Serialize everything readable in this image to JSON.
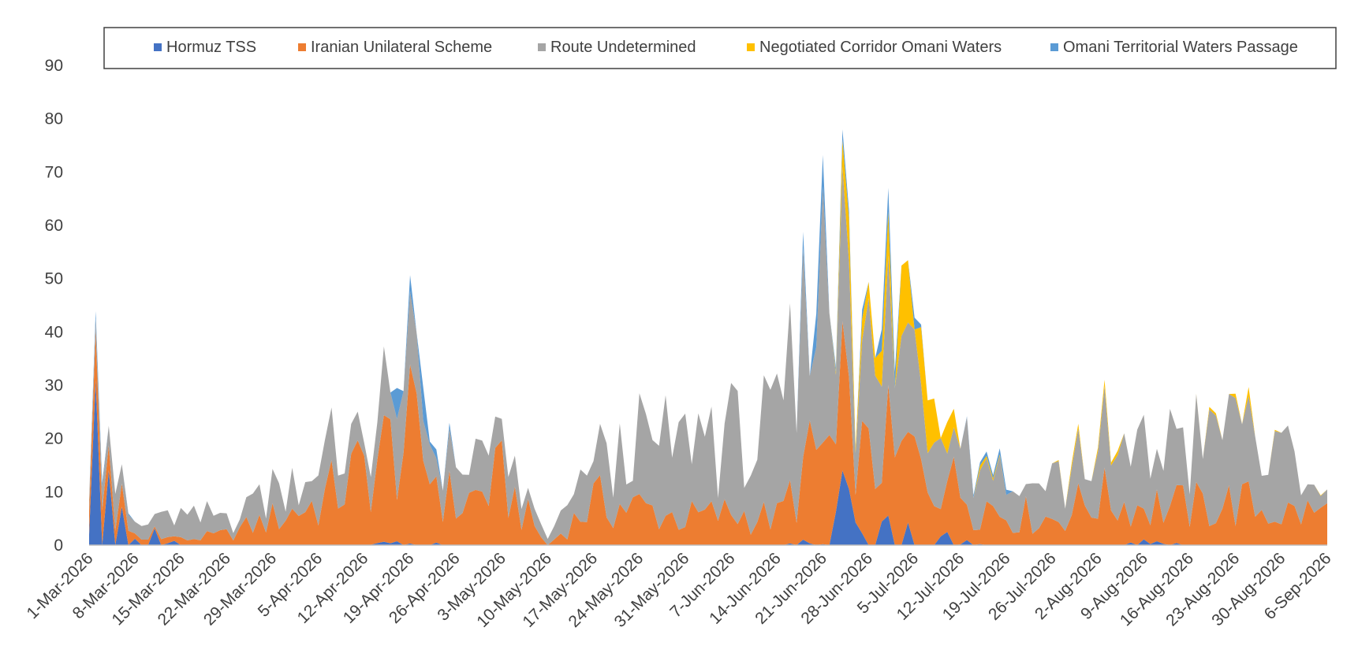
{
  "chart_data": {
    "type": "area",
    "stacked": true,
    "title": "",
    "xlabel": "",
    "ylabel": "",
    "ylim": [
      0,
      90
    ],
    "yticks": [
      0,
      10,
      20,
      30,
      40,
      50,
      60,
      70,
      80,
      90
    ],
    "grid": false,
    "legend_position": "top",
    "x_tick_labels": [
      "1-Mar-2026",
      "8-Mar-2026",
      "15-Mar-2026",
      "22-Mar-2026",
      "29-Mar-2026",
      "5-Apr-2026",
      "12-Apr-2026",
      "19-Apr-2026",
      "26-Apr-2026",
      "3-May-2026",
      "10-May-2026",
      "17-May-2026",
      "24-May-2026",
      "31-May-2026",
      "7-Jun-2026",
      "14-Jun-2026",
      "21-Jun-2026",
      "28-Jun-2026",
      "5-Jul-2026",
      "12-Jul-2026",
      "19-Jul-2026",
      "26-Jul-2026",
      "2-Aug-2026",
      "9-Aug-2026",
      "16-Aug-2026",
      "23-Aug-2026",
      "30-Aug-2026",
      "6-Sep-2026"
    ],
    "x_start": "1-Mar-2026",
    "x_end": "6-Sep-2026",
    "series": [
      {
        "name": "Hormuz TSS",
        "color": "#4472C4"
      },
      {
        "name": "Iranian Unilateral Scheme",
        "color": "#ED7D31"
      },
      {
        "name": "Route Undetermined",
        "color": "#A5A5A5"
      },
      {
        "name": "Negotiated Corridor Omani Waters",
        "color": "#FFC000"
      },
      {
        "name": "Omani Territorial Waters Passage",
        "color": "#5B9BD5"
      }
    ],
    "weekly_values": [
      {
        "date": "1-Mar-2026",
        "values": [
          20,
          8,
          7,
          0,
          1
        ]
      },
      {
        "date": "8-Mar-2026",
        "values": [
          3,
          1,
          2,
          0,
          0
        ]
      },
      {
        "date": "15-Mar-2026",
        "values": [
          0,
          1,
          4,
          0,
          0
        ]
      },
      {
        "date": "22-Mar-2026",
        "values": [
          0,
          2,
          3,
          0,
          0
        ]
      },
      {
        "date": "29-Mar-2026",
        "values": [
          0,
          5,
          6,
          0,
          0
        ]
      },
      {
        "date": "5-Apr-2026",
        "values": [
          0,
          8,
          7,
          0,
          0
        ]
      },
      {
        "date": "12-Apr-2026",
        "values": [
          0,
          14,
          6,
          0,
          0
        ]
      },
      {
        "date": "19-Apr-2026",
        "values": [
          1,
          20,
          10,
          0,
          6
        ]
      },
      {
        "date": "26-Apr-2026",
        "values": [
          0,
          7,
          6,
          0,
          0
        ]
      },
      {
        "date": "3-May-2026",
        "values": [
          0,
          12,
          6,
          0,
          0
        ]
      },
      {
        "date": "10-May-2026",
        "values": [
          0,
          0,
          1,
          0,
          0
        ]
      },
      {
        "date": "17-May-2026",
        "values": [
          0,
          8,
          8,
          0,
          0
        ]
      },
      {
        "date": "24-May-2026",
        "values": [
          0,
          7,
          11,
          0,
          0
        ]
      },
      {
        "date": "31-May-2026",
        "values": [
          0,
          5,
          15,
          0,
          0
        ]
      },
      {
        "date": "7-Jun-2026",
        "values": [
          0,
          6,
          15,
          0,
          0
        ]
      },
      {
        "date": "14-Jun-2026",
        "values": [
          0,
          5,
          15,
          0,
          0
        ]
      },
      {
        "date": "21-Jun-2026",
        "values": [
          1,
          18,
          32,
          0,
          4
        ]
      },
      {
        "date": "28-Jun-2026",
        "values": [
          3,
          14,
          17,
          4,
          2
        ]
      },
      {
        "date": "5-Jul-2026",
        "values": [
          3,
          15,
          18,
          9,
          3
        ]
      },
      {
        "date": "12-Jul-2026",
        "values": [
          1,
          10,
          14,
          1,
          0
        ]
      },
      {
        "date": "19-Jul-2026",
        "values": [
          0,
          6,
          7,
          0,
          1
        ]
      },
      {
        "date": "26-Jul-2026",
        "values": [
          0,
          5,
          8,
          0,
          0
        ]
      },
      {
        "date": "2-Aug-2026",
        "values": [
          0,
          9,
          9,
          1,
          0
        ]
      },
      {
        "date": "9-Aug-2026",
        "values": [
          1,
          7,
          11,
          0,
          0
        ]
      },
      {
        "date": "16-Aug-2026",
        "values": [
          0,
          7,
          12,
          0,
          0
        ]
      },
      {
        "date": "23-Aug-2026",
        "values": [
          0,
          8,
          16,
          1,
          0
        ]
      },
      {
        "date": "30-Aug-2026",
        "values": [
          0,
          6,
          10,
          1,
          0
        ]
      },
      {
        "date": "6-Sep-2026",
        "values": [
          0,
          6,
          2,
          0,
          0
        ]
      }
    ],
    "peak": {
      "date": "24-Jun-2026",
      "total": 78,
      "values": [
        14,
        28,
        29,
        5,
        2
      ]
    }
  }
}
